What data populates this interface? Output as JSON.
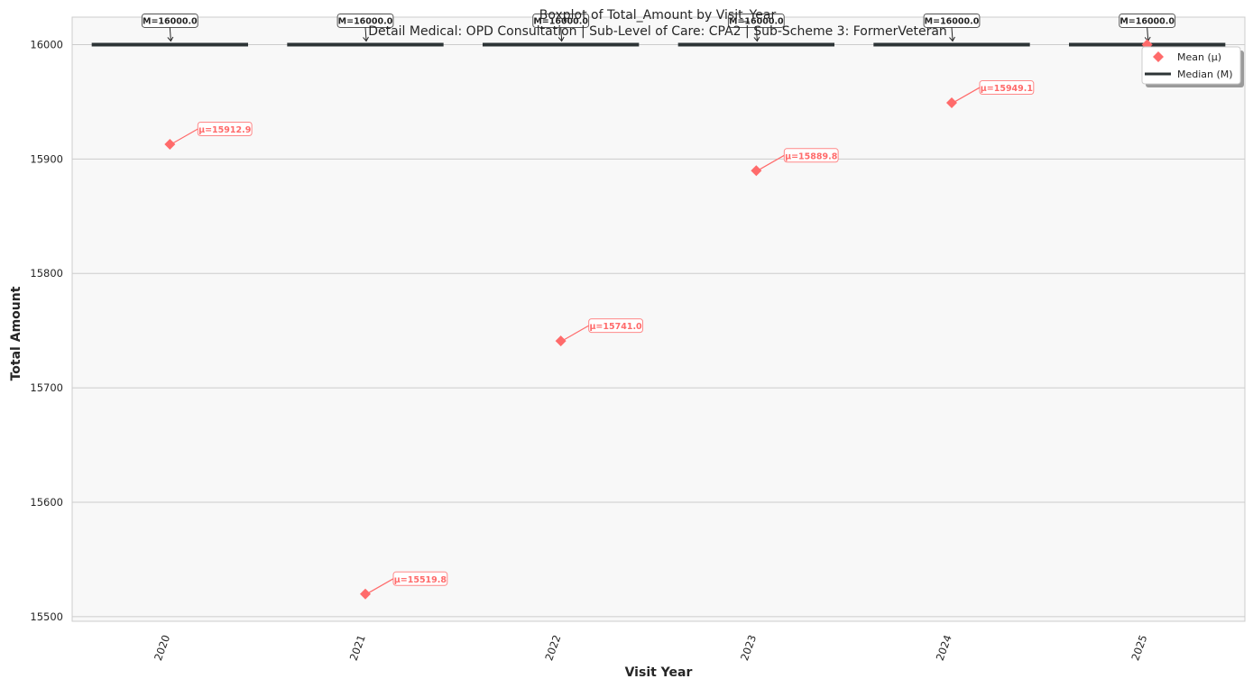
{
  "chart_data": {
    "type": "box",
    "title": "Boxplot of Total_Amount by Visit_Year",
    "subtitle": "Detail Medical: OPD Consultation | Sub-Level of Care: CPA2 | Sub-Scheme 3: FormerVeteran",
    "xlabel": "Visit Year",
    "ylabel": "Total Amount",
    "categories": [
      "2020",
      "2021",
      "2022",
      "2023",
      "2024",
      "2025"
    ],
    "ylim": [
      15496,
      16024
    ],
    "yticks": [
      15500,
      15600,
      15700,
      15800,
      15900,
      16000
    ],
    "grid": "horizontal",
    "legend_position": "top-right",
    "series": [
      {
        "name": "Median (M)",
        "marker": "line",
        "color": "#2d3436",
        "values": [
          16000.0,
          16000.0,
          16000.0,
          16000.0,
          16000.0,
          16000.0
        ],
        "labels": [
          "M=16000.0",
          "M=16000.0",
          "M=16000.0",
          "M=16000.0",
          "M=16000.0",
          "M=16000.0"
        ]
      },
      {
        "name": "Mean (μ)",
        "marker": "diamond",
        "color": "#ff6b6b",
        "values": [
          15912.9,
          15519.8,
          15741.0,
          15889.8,
          15949.1,
          16000.0
        ],
        "labels": [
          "μ=15912.9",
          "μ=15519.8",
          "μ=15741.0",
          "μ=15889.8",
          "μ=15949.1",
          ""
        ]
      }
    ]
  }
}
